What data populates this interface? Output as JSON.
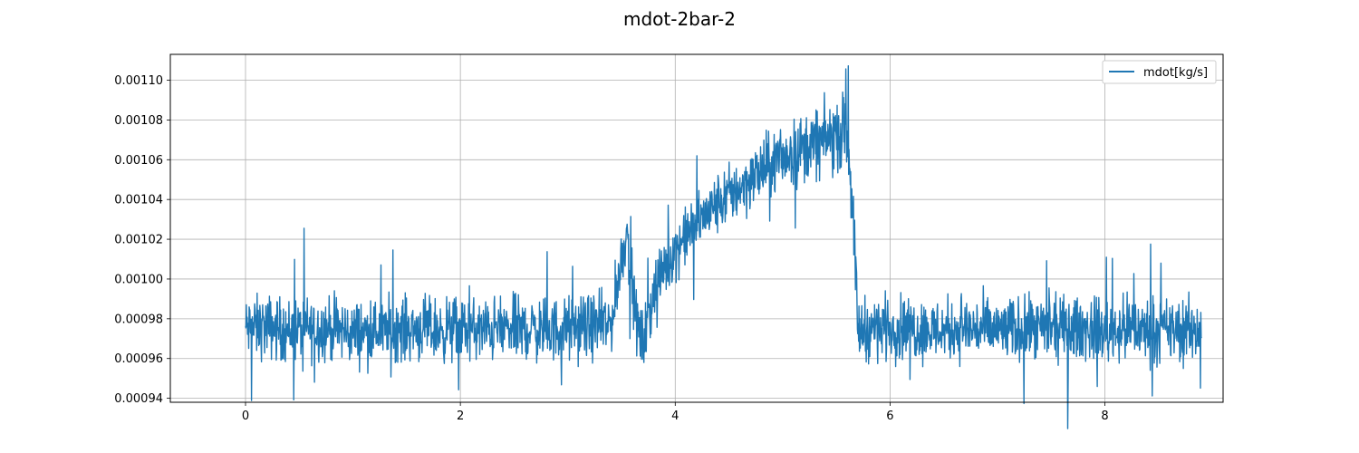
{
  "chart_data": {
    "type": "line",
    "title": "mdot-2bar-2",
    "xlabel": "",
    "ylabel": "",
    "xlim": [
      -0.7,
      9.1
    ],
    "ylim": [
      0.000938,
      0.001113
    ],
    "x_ticks": [
      0,
      2,
      4,
      6,
      8
    ],
    "x_tick_labels": [
      "0",
      "2",
      "4",
      "6",
      "8"
    ],
    "y_ticks": [
      0.00094,
      0.00096,
      0.00098,
      0.001,
      0.00102,
      0.00104,
      0.00106,
      0.00108,
      0.0011
    ],
    "y_tick_labels": [
      "0.00094",
      "0.00096",
      "0.00098",
      "0.00100",
      "0.00102",
      "0.00104",
      "0.00106",
      "0.00108",
      "0.00110"
    ],
    "grid": true,
    "legend_position": "top-right",
    "series": [
      {
        "name": "mdot[kg/s]",
        "color": "#1f77b4",
        "x": [
          0.0,
          0.2,
          0.4,
          0.6,
          0.8,
          1.0,
          1.2,
          1.4,
          1.6,
          1.8,
          2.0,
          2.2,
          2.4,
          2.6,
          2.8,
          3.0,
          3.2,
          3.4,
          3.5,
          3.55,
          3.6,
          3.65,
          3.7,
          3.75,
          3.8,
          3.9,
          4.0,
          4.2,
          4.4,
          4.6,
          4.8,
          5.0,
          5.2,
          5.4,
          5.6,
          5.65,
          5.7,
          5.8,
          6.0,
          6.2,
          6.4,
          6.6,
          6.8,
          7.0,
          7.2,
          7.4,
          7.6,
          7.8,
          8.0,
          8.2,
          8.4,
          8.6,
          8.9
        ],
        "y": [
          0.000975,
          0.000976,
          0.000974,
          0.000975,
          0.000975,
          0.000973,
          0.000974,
          0.000975,
          0.000975,
          0.000974,
          0.000975,
          0.000974,
          0.000975,
          0.000975,
          0.000974,
          0.000975,
          0.000976,
          0.000977,
          0.00101,
          0.001025,
          0.000995,
          0.000975,
          0.000968,
          0.000978,
          0.000995,
          0.001005,
          0.001015,
          0.001028,
          0.001038,
          0.001046,
          0.001054,
          0.001061,
          0.001066,
          0.00107,
          0.001075,
          0.00104,
          0.000975,
          0.000975,
          0.000976,
          0.000975,
          0.000974,
          0.000975,
          0.000975,
          0.000974,
          0.000975,
          0.000974,
          0.000975,
          0.000975,
          0.000974,
          0.000975,
          0.000974,
          0.000974,
          0.000975
        ]
      }
    ]
  }
}
